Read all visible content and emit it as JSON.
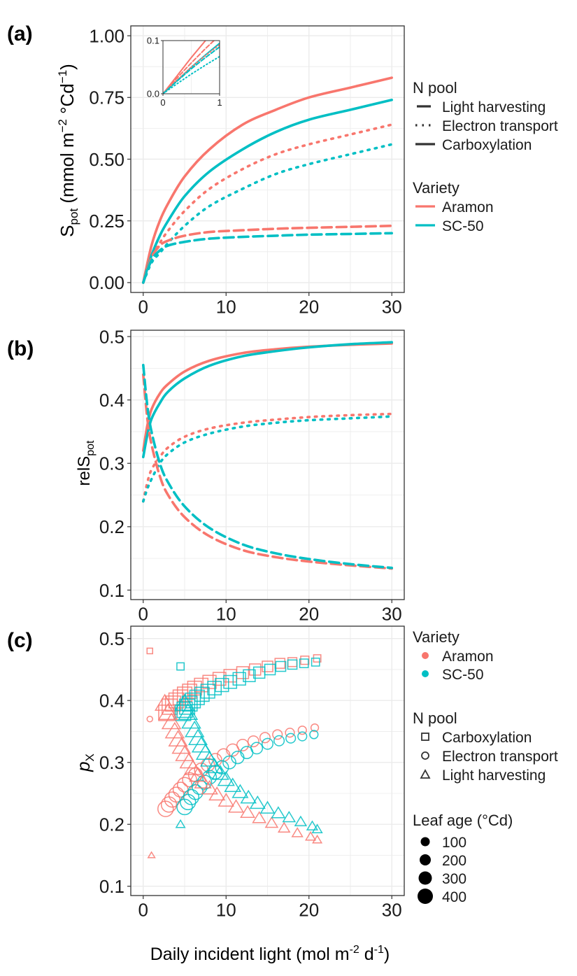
{
  "colors": {
    "aramon": "#F8766D",
    "sc50": "#00BFC4",
    "grid": "#EBEBEB",
    "frame": "#333333"
  },
  "legend_a": {
    "npool_title": "N pool",
    "npool_items": [
      {
        "label": "Light harvesting",
        "dash": "long-dash"
      },
      {
        "label": "Electron transport",
        "dash": "dotted"
      },
      {
        "label": "Carboxylation",
        "dash": "solid"
      }
    ],
    "variety_title": "Variety",
    "variety_items": [
      {
        "label": "Aramon",
        "color": "#F8766D"
      },
      {
        "label": "SC-50",
        "color": "#00BFC4"
      }
    ]
  },
  "legend_c": {
    "variety_title": "Variety",
    "variety_items": [
      {
        "label": "Aramon",
        "color": "#F8766D"
      },
      {
        "label": "SC-50",
        "color": "#00BFC4"
      }
    ],
    "npool_title": "N pool",
    "npool_items": [
      {
        "label": "Carboxylation",
        "shape": "square"
      },
      {
        "label": "Electron transport",
        "shape": "circle"
      },
      {
        "label": "Light harvesting",
        "shape": "triangle"
      }
    ],
    "age_title": "Leaf age (°Cd)",
    "age_items": [
      "100",
      "200",
      "300",
      "400"
    ]
  },
  "xlabel": "Daily incident light (mol m⁻² d⁻¹)",
  "chart_data": [
    {
      "panel": "(a)",
      "type": "line",
      "ylabel": "Spot (mmol m⁻² °Cd⁻¹)",
      "xlim": [
        -1.5,
        31.5
      ],
      "ylim": [
        -0.04,
        1.04
      ],
      "xticks": [
        "0",
        "10",
        "20",
        "30"
      ],
      "yticks": [
        "0.00",
        "0.25",
        "0.50",
        "0.75",
        "1.00"
      ],
      "x": [
        0,
        1,
        2,
        3,
        5,
        8,
        12,
        16,
        20,
        25,
        30
      ],
      "series": [
        {
          "variety": "Aramon",
          "npool": "Carboxylation",
          "values": [
            0,
            0.15,
            0.25,
            0.32,
            0.43,
            0.54,
            0.64,
            0.7,
            0.75,
            0.79,
            0.83
          ]
        },
        {
          "variety": "SC-50",
          "npool": "Carboxylation",
          "values": [
            0,
            0.11,
            0.19,
            0.25,
            0.35,
            0.45,
            0.54,
            0.61,
            0.66,
            0.7,
            0.74
          ]
        },
        {
          "variety": "Aramon",
          "npool": "Electron transport",
          "values": [
            0,
            0.1,
            0.16,
            0.21,
            0.29,
            0.38,
            0.46,
            0.52,
            0.56,
            0.6,
            0.64
          ]
        },
        {
          "variety": "SC-50",
          "npool": "Electron transport",
          "values": [
            0,
            0.08,
            0.12,
            0.16,
            0.23,
            0.31,
            0.38,
            0.44,
            0.48,
            0.52,
            0.56
          ]
        },
        {
          "variety": "Aramon",
          "npool": "Light harvesting",
          "values": [
            0,
            0.1,
            0.15,
            0.17,
            0.19,
            0.205,
            0.212,
            0.218,
            0.222,
            0.226,
            0.23
          ]
        },
        {
          "variety": "SC-50",
          "npool": "Light harvesting",
          "values": [
            0,
            0.09,
            0.13,
            0.15,
            0.165,
            0.178,
            0.185,
            0.19,
            0.194,
            0.197,
            0.2
          ]
        }
      ],
      "inset": {
        "xlim": [
          0,
          1
        ],
        "ylim": [
          0,
          0.1
        ],
        "xticks": [
          "0",
          "1"
        ],
        "yticks": [
          "0.0",
          "0.1"
        ],
        "x": [
          0,
          0.25,
          0.5,
          0.75,
          1
        ],
        "series": [
          {
            "variety": "Aramon",
            "npool": "Carboxylation",
            "values": [
              0,
              0.034,
              0.068,
              0.1,
              0.13
            ]
          },
          {
            "variety": "SC-50",
            "npool": "Carboxylation",
            "values": [
              0,
              0.025,
              0.05,
              0.073,
              0.095
            ]
          },
          {
            "variety": "Aramon",
            "npool": "Electron transport",
            "values": [
              0,
              0.026,
              0.05,
              0.072,
              0.092
            ]
          },
          {
            "variety": "SC-50",
            "npool": "Electron transport",
            "values": [
              0,
              0.019,
              0.037,
              0.054,
              0.07
            ]
          },
          {
            "variety": "Aramon",
            "npool": "Light harvesting",
            "values": [
              0,
              0.03,
              0.058,
              0.085,
              0.11
            ]
          },
          {
            "variety": "SC-50",
            "npool": "Light harvesting",
            "values": [
              0,
              0.024,
              0.047,
              0.068,
              0.088
            ]
          }
        ]
      }
    },
    {
      "panel": "(b)",
      "type": "line",
      "ylabel": "relSpot",
      "xlim": [
        -1.5,
        31.5
      ],
      "ylim": [
        0.085,
        0.51
      ],
      "xticks": [
        "0",
        "10",
        "20",
        "30"
      ],
      "yticks": [
        "0.1",
        "0.2",
        "0.3",
        "0.4",
        "0.5"
      ],
      "x": [
        0,
        0.5,
        1,
        2,
        3,
        5,
        8,
        12,
        16,
        20,
        25,
        30
      ],
      "series": [
        {
          "variety": "Aramon",
          "npool": "Carboxylation",
          "values": [
            0.32,
            0.36,
            0.385,
            0.41,
            0.425,
            0.445,
            0.462,
            0.474,
            0.48,
            0.484,
            0.487,
            0.489
          ]
        },
        {
          "variety": "SC-50",
          "npool": "Carboxylation",
          "values": [
            0.31,
            0.345,
            0.37,
            0.395,
            0.413,
            0.434,
            0.454,
            0.469,
            0.477,
            0.483,
            0.488,
            0.491
          ]
        },
        {
          "variety": "Aramon",
          "npool": "Electron transport",
          "values": [
            0.24,
            0.27,
            0.29,
            0.31,
            0.325,
            0.342,
            0.355,
            0.364,
            0.369,
            0.373,
            0.376,
            0.378
          ]
        },
        {
          "variety": "SC-50",
          "npool": "Electron transport",
          "values": [
            0.24,
            0.26,
            0.275,
            0.3,
            0.315,
            0.333,
            0.347,
            0.358,
            0.364,
            0.368,
            0.371,
            0.374
          ]
        },
        {
          "variety": "Aramon",
          "npool": "Light harvesting",
          "values": [
            0.44,
            0.37,
            0.33,
            0.28,
            0.25,
            0.215,
            0.185,
            0.163,
            0.152,
            0.145,
            0.139,
            0.134
          ]
        },
        {
          "variety": "SC-50",
          "npool": "Light harvesting",
          "values": [
            0.455,
            0.39,
            0.35,
            0.3,
            0.27,
            0.232,
            0.198,
            0.172,
            0.158,
            0.149,
            0.141,
            0.135
          ]
        }
      ]
    },
    {
      "panel": "(c)",
      "type": "scatter",
      "ylabel": "pX",
      "xlim": [
        -1.5,
        31.5
      ],
      "ylim": [
        0.085,
        0.52
      ],
      "xticks": [
        "0",
        "10",
        "20",
        "30"
      ],
      "yticks": [
        "0.1",
        "0.2",
        "0.3",
        "0.4",
        "0.5"
      ],
      "series": [
        {
          "variety": "Aramon",
          "npool": "Carboxylation",
          "x": [
            0.8,
            2.8,
            3.2,
            3.6,
            4.0,
            4.5,
            5.0,
            5.6,
            6.2,
            7.0,
            8.0,
            9.2,
            10.5,
            12.0,
            13.5,
            15.0,
            16.5,
            18.0,
            19.5,
            21.0
          ],
          "y": [
            0.48,
            0.38,
            0.39,
            0.395,
            0.4,
            0.405,
            0.41,
            0.415,
            0.42,
            0.425,
            0.43,
            0.435,
            0.44,
            0.445,
            0.45,
            0.455,
            0.46,
            0.462,
            0.465,
            0.468
          ],
          "age": [
            100,
            400,
            395,
            390,
            385,
            380,
            370,
            360,
            350,
            340,
            330,
            320,
            310,
            290,
            270,
            250,
            230,
            200,
            180,
            150
          ]
        },
        {
          "variety": "SC-50",
          "npool": "Carboxylation",
          "x": [
            4.5,
            4.8,
            5.0,
            5.3,
            5.6,
            6.0,
            6.5,
            7.1,
            7.8,
            8.6,
            9.5,
            10.5,
            11.6,
            12.8,
            14.0,
            15.3,
            16.6,
            18.0,
            19.4,
            20.8
          ],
          "y": [
            0.455,
            0.38,
            0.385,
            0.39,
            0.395,
            0.4,
            0.405,
            0.41,
            0.415,
            0.42,
            0.425,
            0.43,
            0.435,
            0.44,
            0.445,
            0.45,
            0.455,
            0.458,
            0.46,
            0.462
          ],
          "age": [
            150,
            400,
            395,
            390,
            385,
            380,
            370,
            360,
            350,
            340,
            330,
            320,
            310,
            290,
            270,
            250,
            230,
            210,
            190,
            170
          ]
        },
        {
          "variety": "Aramon",
          "npool": "Electron transport",
          "x": [
            0.8,
            2.7,
            3.1,
            3.5,
            4.0,
            4.5,
            5.0,
            5.6,
            6.3,
            7.0,
            7.8,
            8.7,
            9.7,
            10.8,
            12.0,
            13.3,
            14.7,
            16.2,
            17.7,
            19.2,
            20.7
          ],
          "y": [
            0.37,
            0.225,
            0.232,
            0.24,
            0.248,
            0.256,
            0.264,
            0.272,
            0.28,
            0.288,
            0.296,
            0.304,
            0.312,
            0.32,
            0.328,
            0.334,
            0.34,
            0.345,
            0.348,
            0.352,
            0.356
          ],
          "age": [
            100,
            400,
            395,
            390,
            385,
            380,
            370,
            360,
            350,
            340,
            330,
            320,
            310,
            300,
            280,
            260,
            240,
            220,
            200,
            180,
            160
          ]
        },
        {
          "variety": "SC-50",
          "npool": "Electron transport",
          "x": [
            5.0,
            5.4,
            5.8,
            6.3,
            6.8,
            7.4,
            8.0,
            8.7,
            9.5,
            10.4,
            11.4,
            12.5,
            13.7,
            15.0,
            16.4,
            17.8,
            19.2,
            20.6
          ],
          "y": [
            0.228,
            0.236,
            0.244,
            0.252,
            0.26,
            0.268,
            0.276,
            0.284,
            0.292,
            0.3,
            0.308,
            0.316,
            0.323,
            0.33,
            0.335,
            0.339,
            0.342,
            0.345
          ],
          "age": [
            400,
            395,
            390,
            380,
            370,
            360,
            350,
            340,
            330,
            320,
            310,
            300,
            280,
            260,
            240,
            220,
            200,
            180
          ]
        },
        {
          "variety": "Aramon",
          "npool": "Light harvesting",
          "x": [
            1.0,
            2.6,
            3.0,
            3.4,
            3.8,
            4.2,
            4.6,
            5.0,
            5.5,
            6.0,
            6.6,
            7.2,
            8.0,
            8.9,
            10.0,
            11.2,
            12.6,
            14.0,
            15.5,
            17.0,
            18.6,
            20.2,
            21.0
          ],
          "y": [
            0.15,
            0.395,
            0.38,
            0.365,
            0.35,
            0.337,
            0.325,
            0.313,
            0.301,
            0.29,
            0.279,
            0.268,
            0.258,
            0.248,
            0.238,
            0.228,
            0.219,
            0.21,
            0.202,
            0.194,
            0.186,
            0.18,
            0.175
          ],
          "age": [
            100,
            400,
            395,
            390,
            385,
            380,
            375,
            370,
            360,
            350,
            340,
            330,
            320,
            310,
            300,
            290,
            270,
            250,
            230,
            210,
            190,
            170,
            150
          ]
        },
        {
          "variety": "SC-50",
          "npool": "Light harvesting",
          "x": [
            4.5,
            5.0,
            5.4,
            5.8,
            6.2,
            6.6,
            7.0,
            7.5,
            8.0,
            8.6,
            9.3,
            10.0,
            10.8,
            11.7,
            12.7,
            13.8,
            15.0,
            16.3,
            17.6,
            19.0,
            20.4,
            21.0
          ],
          "y": [
            0.2,
            0.395,
            0.38,
            0.366,
            0.352,
            0.339,
            0.327,
            0.315,
            0.304,
            0.293,
            0.282,
            0.272,
            0.262,
            0.252,
            0.243,
            0.234,
            0.226,
            0.218,
            0.211,
            0.204,
            0.197,
            0.192
          ],
          "age": [
            150,
            400,
            395,
            390,
            385,
            380,
            375,
            370,
            360,
            350,
            340,
            330,
            320,
            310,
            300,
            290,
            270,
            250,
            230,
            210,
            190,
            170
          ]
        }
      ]
    }
  ]
}
